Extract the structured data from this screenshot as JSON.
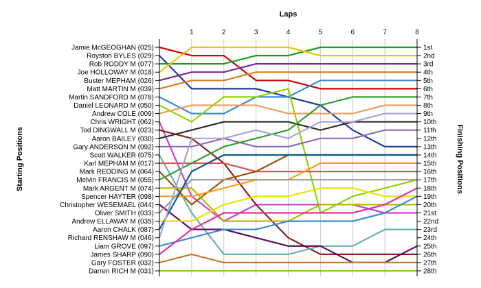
{
  "chart_data": {
    "type": "line",
    "title": "Laps",
    "ylabel_left": "Starting Positions",
    "ylabel_right": "Finishing Positions",
    "laps": [
      0,
      1,
      2,
      3,
      4,
      5,
      6,
      7,
      8
    ],
    "lap_ticks": [
      "1",
      "2",
      "3",
      "4",
      "5",
      "6",
      "7",
      "8"
    ],
    "finish_labels": [
      "1st",
      "2nd",
      "3rd",
      "4th",
      "5th",
      "6th",
      "7th",
      "8th",
      "9th",
      "10th",
      "11th",
      "12th",
      "13th",
      "14th",
      "15th",
      "16th",
      "17th",
      "18th",
      "19th",
      "20th",
      "21st",
      "22nd",
      "23rd",
      "24th",
      "25th",
      "26th",
      "27th",
      "28th"
    ],
    "series": [
      {
        "label": "Jamie McGEOGHAN (025)",
        "color": "#cc0000",
        "positions": [
          1,
          2,
          2,
          5,
          5,
          6,
          6,
          6,
          6
        ]
      },
      {
        "label": "Royston BYLES (029)",
        "color": "#1f3d99",
        "positions": [
          2,
          6,
          6,
          6,
          7,
          8,
          11,
          13,
          13
        ]
      },
      {
        "label": "Rob RODDY    M (077)",
        "color": "#229922",
        "positions": [
          3,
          3,
          3,
          2,
          2,
          1,
          1,
          1,
          1
        ]
      },
      {
        "label": "Joe HOLLOWAY    M (018)",
        "color": "#e6c800",
        "positions": [
          4,
          1,
          1,
          1,
          1,
          2,
          2,
          2,
          2
        ]
      },
      {
        "label": "Buster MEPHAM (026)",
        "color": "#7a2a8c",
        "positions": [
          5,
          4,
          4,
          3,
          3,
          3,
          3,
          3,
          3
        ]
      },
      {
        "label": "Matt MARTIN    M (039)",
        "color": "#e07a1f",
        "positions": [
          6,
          5,
          5,
          4,
          4,
          4,
          4,
          4,
          4
        ]
      },
      {
        "label": "Martin SANDFORD    M (078)",
        "color": "#3d8ad6",
        "positions": [
          7,
          9,
          9,
          7,
          7,
          5,
          5,
          5,
          5
        ]
      },
      {
        "label": "Daniel LEONARD    M (050)",
        "color": "#8fd400",
        "positions": [
          8,
          10,
          7,
          7,
          6,
          21,
          19,
          18,
          17
        ]
      },
      {
        "label": "Andrew COLE (009)",
        "color": "#e8a060",
        "positions": [
          9,
          8,
          8,
          8,
          9,
          9,
          9,
          8,
          8
        ]
      },
      {
        "label": "Chris WRIGHT (062)",
        "color": "#d040d0",
        "positions": [
          10,
          19,
          22,
          20,
          20,
          20,
          20,
          21,
          21
        ]
      },
      {
        "label": "Tod DINGWALL    M (023)",
        "color": "#8b2020",
        "positions": [
          11,
          12,
          15,
          20,
          24,
          26,
          26,
          26,
          26
        ]
      },
      {
        "label": "Aaron BAILEY (030)",
        "color": "#2e2e2e",
        "positions": [
          12,
          11,
          10,
          10,
          10,
          11,
          10,
          10,
          10
        ]
      },
      {
        "label": "Gary ANDERSON    M (092)",
        "color": "#8c6ab0",
        "positions": [
          13,
          13,
          12,
          13,
          13,
          12,
          12,
          11,
          11
        ]
      },
      {
        "label": "Scott WALKER (075)",
        "color": "#66b2aa",
        "positions": [
          14,
          21,
          26,
          26,
          26,
          25,
          25,
          23,
          23
        ]
      },
      {
        "label": "Karl MEPHAM    M (017)",
        "color": "#d05a50",
        "positions": [
          15,
          15,
          15,
          16,
          16,
          16,
          16,
          16,
          16
        ]
      },
      {
        "label": "Mark REDDING    M (064)",
        "color": "#a05000",
        "positions": [
          16,
          20,
          17,
          16,
          14,
          14,
          14,
          14,
          14
        ]
      },
      {
        "label": "Melvin FRANCIS    M (055)",
        "color": "#30a030",
        "positions": [
          17,
          15,
          13,
          12,
          11,
          8,
          7,
          7,
          7
        ]
      },
      {
        "label": "Mark ARGENT    M (074)",
        "color": "#b8b800",
        "positions": [
          18,
          18,
          22,
          22,
          22,
          20,
          20,
          20,
          20
        ]
      },
      {
        "label": "Spencer HAYTER (098)",
        "color": "#ff9a1a",
        "positions": [
          19,
          19,
          18,
          17,
          17,
          15,
          15,
          15,
          15
        ]
      },
      {
        "label": "Christopher WESEMAEL (044)",
        "color": "#5a0a5a",
        "positions": [
          20,
          23,
          23,
          24,
          25,
          25,
          27,
          27,
          25
        ]
      },
      {
        "label": "Oliver SMITH (033)",
        "color": "#9a9a9a",
        "positions": [
          21,
          17,
          17,
          17,
          17,
          17,
          17,
          17,
          17
        ]
      },
      {
        "label": "Andrew ELLAWAY    M (035)",
        "color": "#f0e000",
        "positions": [
          22,
          22,
          20,
          19,
          19,
          18,
          18,
          19,
          19
        ]
      },
      {
        "label": "Aaron CHALK (087)",
        "color": "#0a5a8a",
        "positions": [
          23,
          16,
          14,
          14,
          14,
          14,
          14,
          14,
          14
        ]
      },
      {
        "label": "Richard RENSHAW    M (046)",
        "color": "#a4a4d8",
        "positions": [
          24,
          12,
          12,
          11,
          12,
          10,
          10,
          9,
          9
        ]
      },
      {
        "label": "Liam GROVE (097)",
        "color": "#3c8ad0",
        "positions": [
          25,
          24,
          23,
          23,
          22,
          22,
          22,
          21,
          19
        ]
      },
      {
        "label": "James SHARP (090)",
        "color": "#e030a0",
        "positions": [
          26,
          23,
          21,
          21,
          21,
          21,
          21,
          20,
          18
        ]
      },
      {
        "label": "Gary FOSTER (032)",
        "color": "#c87830",
        "positions": [
          27,
          26,
          27,
          27,
          27,
          27,
          27,
          27,
          27
        ]
      },
      {
        "label": "Darren RICH    M (031)",
        "color": "#8ccc20",
        "positions": [
          28,
          28,
          28,
          28,
          28,
          28,
          28,
          28,
          28
        ]
      }
    ]
  }
}
